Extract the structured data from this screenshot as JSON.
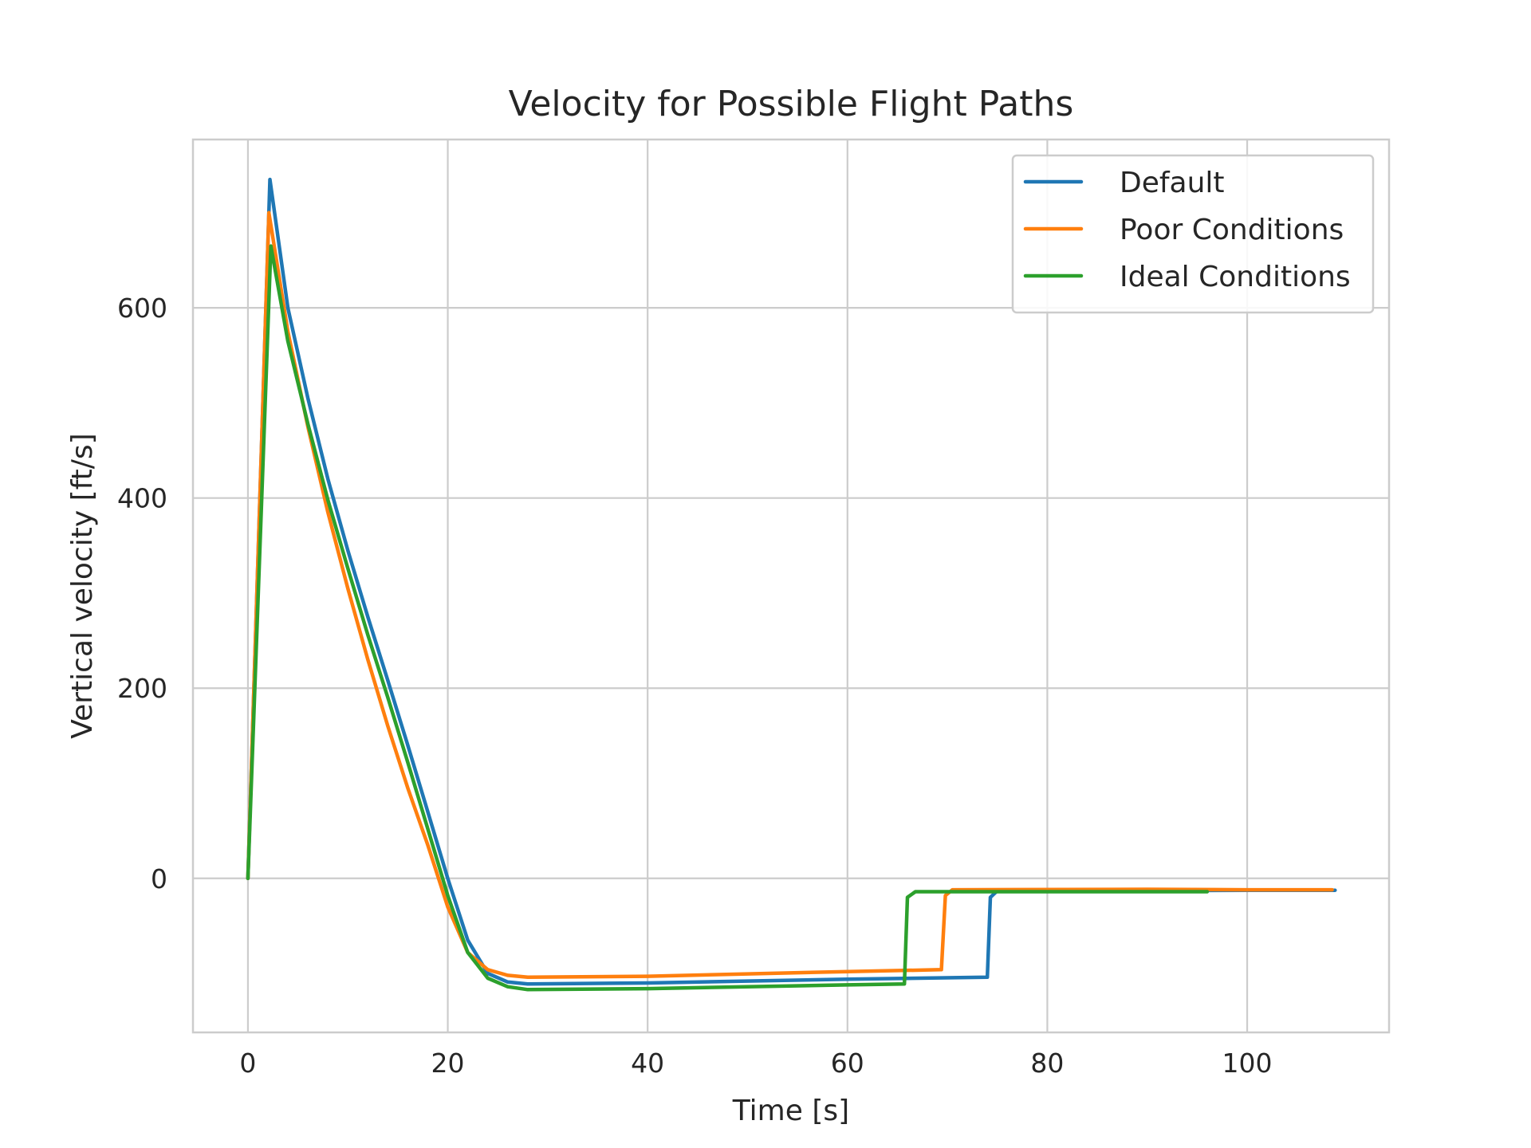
{
  "chart_data": {
    "type": "line",
    "title": "Velocity for Possible Flight Paths",
    "xlabel": "Time [s]",
    "ylabel": "Vertical velocity [ft/s]",
    "xlim": [
      -5.5,
      114.2
    ],
    "ylim": [
      -162,
      777
    ],
    "xticks": [
      0,
      20,
      40,
      60,
      80,
      100
    ],
    "yticks": [
      0,
      200,
      400,
      600
    ],
    "grid": true,
    "legend_position": "top-right",
    "series": [
      {
        "name": "Default",
        "color": "#1f77b4",
        "points": [
          [
            0,
            0
          ],
          [
            2.2,
            735
          ],
          [
            4,
            600
          ],
          [
            6,
            505
          ],
          [
            8,
            420
          ],
          [
            10,
            345
          ],
          [
            12,
            275
          ],
          [
            14,
            208
          ],
          [
            16,
            140
          ],
          [
            18,
            70
          ],
          [
            20,
            0
          ],
          [
            22,
            -65
          ],
          [
            24,
            -100
          ],
          [
            26,
            -109
          ],
          [
            28,
            -111
          ],
          [
            40,
            -110
          ],
          [
            60,
            -106
          ],
          [
            74,
            -104
          ],
          [
            74.3,
            -20
          ],
          [
            75,
            -13
          ],
          [
            90,
            -13
          ],
          [
            100,
            -12.5
          ],
          [
            108.8,
            -12.5
          ]
        ]
      },
      {
        "name": "Poor Conditions",
        "color": "#ff7f0e",
        "points": [
          [
            0,
            0
          ],
          [
            2.1,
            700
          ],
          [
            4,
            575
          ],
          [
            6,
            475
          ],
          [
            8,
            385
          ],
          [
            10,
            305
          ],
          [
            12,
            230
          ],
          [
            14,
            160
          ],
          [
            16,
            95
          ],
          [
            18,
            35
          ],
          [
            20,
            -30
          ],
          [
            22,
            -78
          ],
          [
            24,
            -96
          ],
          [
            26,
            -102
          ],
          [
            28,
            -104
          ],
          [
            40,
            -103
          ],
          [
            60,
            -98
          ],
          [
            69.4,
            -96
          ],
          [
            69.8,
            -18
          ],
          [
            70.5,
            -12
          ],
          [
            90,
            -11.5
          ],
          [
            100,
            -12
          ],
          [
            108.5,
            -12
          ]
        ]
      },
      {
        "name": "Ideal Conditions",
        "color": "#2ca02c",
        "points": [
          [
            0,
            0
          ],
          [
            2.3,
            665
          ],
          [
            4,
            565
          ],
          [
            6,
            478
          ],
          [
            8,
            398
          ],
          [
            10,
            326
          ],
          [
            12,
            256
          ],
          [
            14,
            190
          ],
          [
            16,
            122
          ],
          [
            18,
            52
          ],
          [
            20,
            -18
          ],
          [
            22,
            -78
          ],
          [
            24,
            -105
          ],
          [
            26,
            -114
          ],
          [
            28,
            -117
          ],
          [
            40,
            -116
          ],
          [
            60,
            -112
          ],
          [
            65.7,
            -111
          ],
          [
            66,
            -20
          ],
          [
            66.8,
            -14
          ],
          [
            80,
            -14
          ],
          [
            96,
            -14
          ]
        ]
      }
    ]
  }
}
